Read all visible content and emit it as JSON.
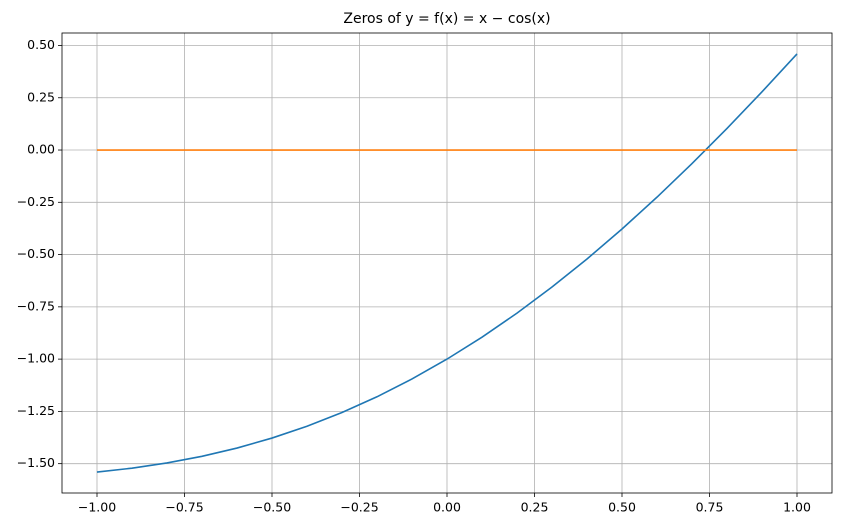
{
  "chart_data": {
    "type": "line",
    "title": "Zeros of y = f(x) = x − cos(x)",
    "x": [
      -1,
      -0.9,
      -0.8,
      -0.7,
      -0.6,
      -0.5,
      -0.4,
      -0.3,
      -0.2,
      -0.1,
      0,
      0.1,
      0.2,
      0.3,
      0.4,
      0.5,
      0.6,
      0.7,
      0.8,
      0.9,
      1
    ],
    "series": [
      {
        "color": "#1f77b4",
        "values": [
          -1.5403,
          -1.5216,
          -1.4967,
          -1.4648,
          -1.4253,
          -1.3776,
          -1.3211,
          -1.2553,
          -1.1801,
          -1.095,
          -1.0,
          -0.895,
          -0.7801,
          -0.6553,
          -0.5211,
          -0.3776,
          -0.2253,
          -0.0648,
          0.1033,
          0.2784,
          0.4597
        ]
      },
      {
        "color": "#ff7f0e",
        "values": [
          0,
          0,
          0,
          0,
          0,
          0,
          0,
          0,
          0,
          0,
          0,
          0,
          0,
          0,
          0,
          0,
          0,
          0,
          0,
          0,
          0
        ]
      }
    ],
    "xlim": [
      -1.1,
      1.1
    ],
    "ylim": [
      -1.6403,
      0.5597
    ],
    "xticks": [
      {
        "value": -1,
        "label": "−1.00"
      },
      {
        "value": -0.75,
        "label": "−0.75"
      },
      {
        "value": -0.5,
        "label": "−0.50"
      },
      {
        "value": -0.25,
        "label": "−0.25"
      },
      {
        "value": 0,
        "label": "0.00"
      },
      {
        "value": 0.25,
        "label": "0.25"
      },
      {
        "value": 0.5,
        "label": "0.50"
      },
      {
        "value": 0.75,
        "label": "0.75"
      },
      {
        "value": 1,
        "label": "1.00"
      }
    ],
    "yticks": [
      {
        "value": -1.5,
        "label": "−1.50"
      },
      {
        "value": -1.25,
        "label": "−1.25"
      },
      {
        "value": -1,
        "label": "−1.00"
      },
      {
        "value": -0.75,
        "label": "−0.75"
      },
      {
        "value": -0.5,
        "label": "−0.50"
      },
      {
        "value": -0.25,
        "label": "−0.25"
      },
      {
        "value": 0,
        "label": "0.00"
      },
      {
        "value": 0.25,
        "label": "0.25"
      },
      {
        "value": 0.5,
        "label": "0.50"
      }
    ],
    "grid": true
  }
}
